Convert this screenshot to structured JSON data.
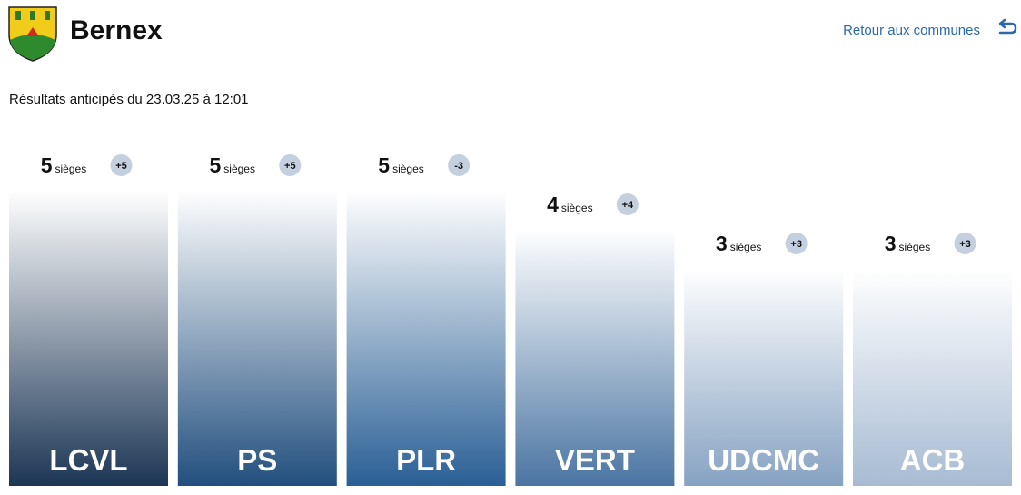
{
  "header": {
    "title": "Bernex",
    "back_link": "Retour aux communes"
  },
  "chart_data": {
    "type": "bar",
    "subtitle": "Résultats anticipés du 23.03.25 à 12:01",
    "unit": "sièges",
    "categories": [
      "LCVL",
      "PS",
      "PLR",
      "VERT",
      "UDCMC",
      "ACB"
    ],
    "values": [
      5,
      5,
      5,
      4,
      3,
      3
    ],
    "changes": [
      5,
      5,
      -3,
      4,
      3,
      3
    ],
    "change_labels": [
      "+5",
      "+5",
      "-3",
      "+4",
      "+3",
      "+3"
    ],
    "colors": [
      "#1c3655",
      "#224f7e",
      "#2a5f95",
      "#4a75a2",
      "#86a2c2",
      "#a7bbd3"
    ]
  }
}
